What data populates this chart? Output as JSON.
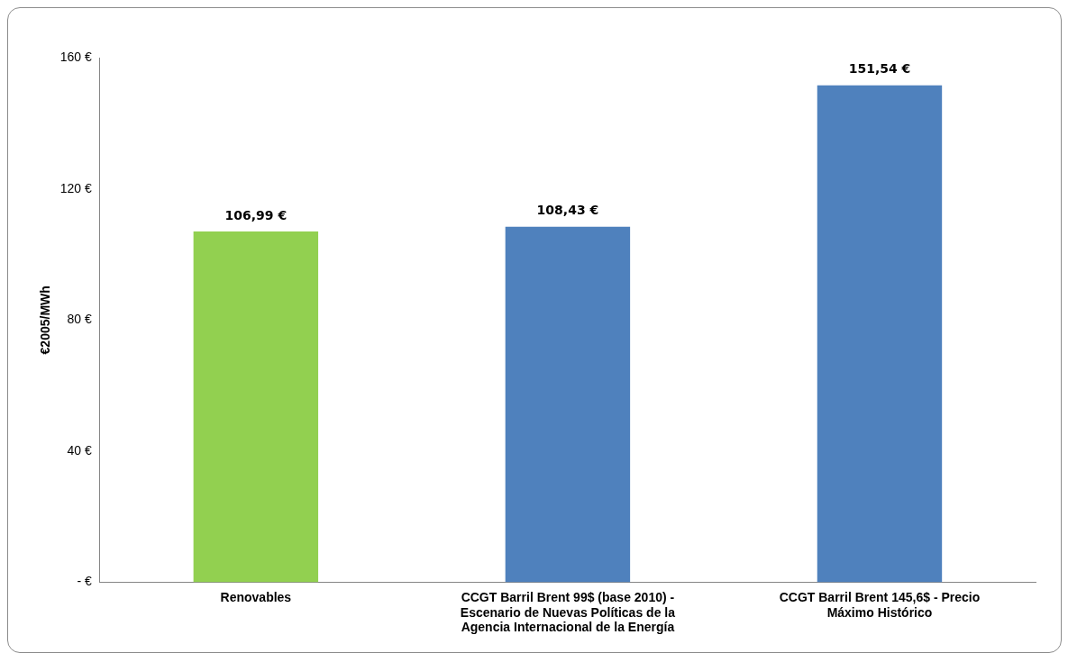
{
  "chart_data": {
    "type": "bar",
    "ylabel": "€2005/MWh",
    "categories": [
      "Renovables",
      "CCGT Barril Brent 99$ (base 2010) - Escenario de Nuevas Políticas de la Agencia Internacional de la Energía",
      "CCGT Barril Brent 145,6$ - Precio Máximo Histórico"
    ],
    "values": [
      106.99,
      108.43,
      151.54
    ],
    "colors": [
      "#92d050",
      "#4f81bd",
      "#4f81bd"
    ],
    "value_labels": [
      "106,99 €",
      "108,43 €",
      "151,54 €"
    ],
    "ylim": [
      0,
      160
    ],
    "yticks": [
      {
        "value": 0,
        "label": "- €"
      },
      {
        "value": 40,
        "label": "40 €"
      },
      {
        "value": 80,
        "label": "80 €"
      },
      {
        "value": 120,
        "label": "120 €"
      },
      {
        "value": 160,
        "label": "160 €"
      }
    ],
    "grid": false,
    "legend": false
  }
}
